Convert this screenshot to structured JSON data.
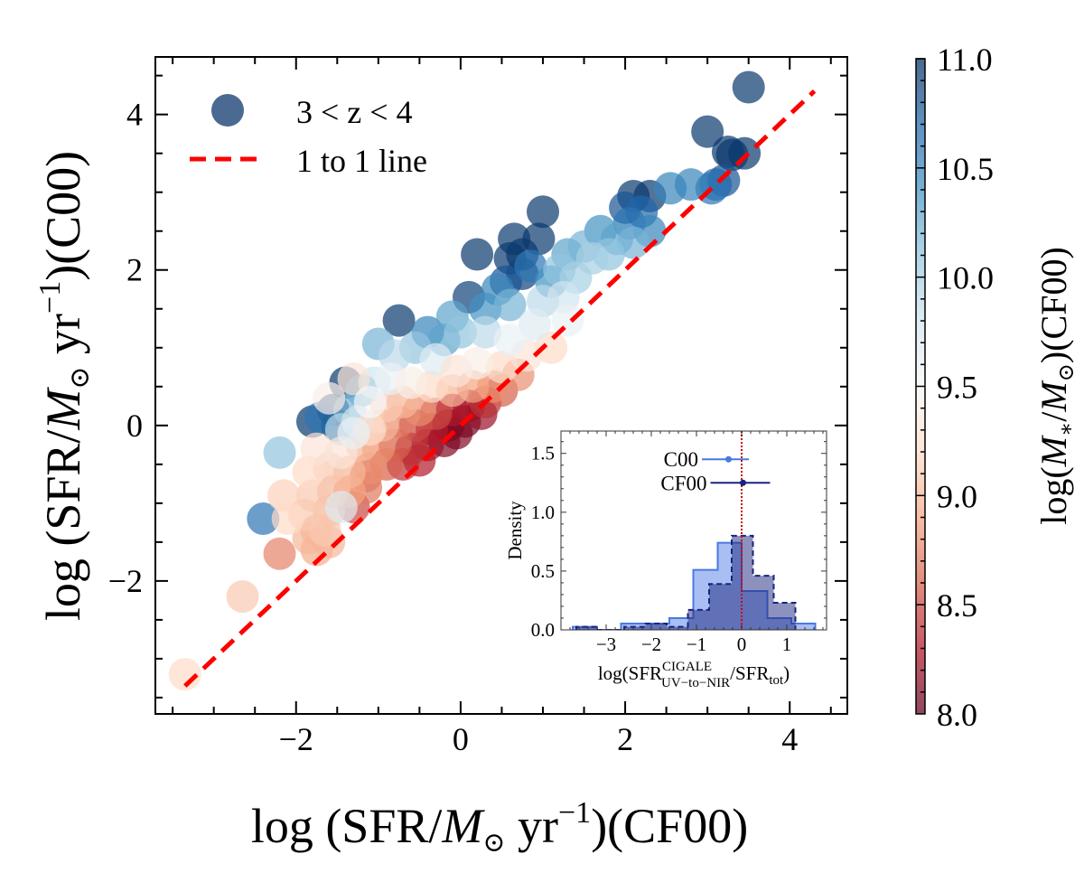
{
  "chart_data": [
    {
      "id": "main",
      "type": "scatter",
      "title": "",
      "xlabel": "log (SFR/M⊙ yr⁻¹)(CF00)",
      "ylabel": "log (SFR/M⊙ yr⁻¹)(C00)",
      "xlim": [
        -3.71,
        4.7
      ],
      "ylim": [
        -3.71,
        4.74
      ],
      "xticks": [
        -2,
        0,
        2,
        4
      ],
      "yticks": [
        -2,
        0,
        2,
        4
      ],
      "xtick_labels": [
        "−2",
        "0",
        "2",
        "4"
      ],
      "ytick_labels": [
        "−2",
        "0",
        "2",
        "4"
      ],
      "grid": false,
      "legend": {
        "placement": "top-left",
        "entries": [
          {
            "label": "3 < z < 4",
            "marker": "circle",
            "color": "#4a6a92"
          },
          {
            "label": "1 to 1 line",
            "marker": "dashed-line",
            "color": "#ff0000"
          }
        ]
      },
      "one_to_one_line": {
        "x": [
          -3.35,
          4.3
        ],
        "y": [
          -3.35,
          4.3
        ],
        "color": "#ff0000",
        "style": "dashed"
      },
      "colorbar": {
        "label": "log(M∗/M⊙)(CF00)",
        "range": [
          8.0,
          11.0
        ],
        "ticks": [
          8.0,
          8.5,
          9.0,
          9.5,
          10.0,
          10.5,
          11.0
        ],
        "tick_labels": [
          "8.0",
          "8.5",
          "9.0",
          "9.5",
          "10.0",
          "10.5",
          "11.0"
        ],
        "colormap": "RdBu",
        "alpha": 0.7
      },
      "series": [
        {
          "name": "3 < z < 4",
          "points": [
            [
              3.5,
              4.35,
              10.95
            ],
            [
              3.0,
              3.78,
              10.95
            ],
            [
              3.25,
              3.52,
              10.95
            ],
            [
              3.45,
              3.5,
              10.95
            ],
            [
              3.3,
              3.48,
              11.0
            ],
            [
              3.1,
              3.1,
              10.7
            ],
            [
              3.2,
              3.15,
              10.8
            ],
            [
              3.05,
              3.05,
              10.6
            ],
            [
              2.8,
              3.1,
              10.5
            ],
            [
              2.55,
              3.05,
              10.5
            ],
            [
              2.3,
              2.95,
              10.95
            ],
            [
              2.1,
              2.95,
              10.95
            ],
            [
              2.0,
              2.8,
              10.8
            ],
            [
              2.2,
              2.75,
              10.7
            ],
            [
              2.05,
              2.6,
              10.6
            ],
            [
              2.3,
              2.5,
              10.5
            ],
            [
              1.9,
              2.4,
              10.3
            ],
            [
              2.1,
              2.35,
              10.2
            ],
            [
              1.7,
              2.5,
              10.4
            ],
            [
              1.8,
              2.2,
              10.1
            ],
            [
              1.6,
              2.15,
              10.0
            ],
            [
              1.5,
              2.3,
              10.2
            ],
            [
              1.3,
              2.2,
              10.3
            ],
            [
              1.2,
              2.0,
              10.1
            ],
            [
              1.4,
              1.9,
              10.0
            ],
            [
              1.0,
              2.75,
              10.95
            ],
            [
              0.65,
              2.4,
              10.95
            ],
            [
              0.95,
              2.4,
              10.95
            ],
            [
              0.75,
              2.2,
              10.95
            ],
            [
              0.6,
              2.15,
              10.95
            ],
            [
              0.2,
              2.2,
              10.95
            ],
            [
              0.55,
              1.85,
              10.8
            ],
            [
              0.75,
              1.95,
              10.9
            ],
            [
              0.1,
              1.65,
              10.9
            ],
            [
              0.85,
              2.05,
              10.6
            ],
            [
              1.1,
              1.85,
              10.4
            ],
            [
              0.45,
              1.75,
              10.5
            ],
            [
              0.3,
              1.5,
              10.4
            ],
            [
              -0.1,
              1.4,
              10.3
            ],
            [
              1.0,
              1.6,
              9.9
            ],
            [
              1.25,
              1.65,
              9.8
            ],
            [
              0.6,
              1.55,
              10.2
            ],
            [
              0.9,
              1.3,
              9.7
            ],
            [
              1.3,
              1.35,
              9.6
            ],
            [
              -0.4,
              1.2,
              10.5
            ],
            [
              -0.2,
              1.1,
              10.3
            ],
            [
              0.0,
              1.2,
              10.1
            ],
            [
              0.3,
              1.2,
              9.9
            ],
            [
              0.6,
              1.1,
              9.6
            ],
            [
              -0.75,
              1.35,
              10.95
            ],
            [
              -0.55,
              1.0,
              10.1
            ],
            [
              -0.8,
              0.9,
              9.9
            ],
            [
              -1.0,
              1.05,
              10.2
            ],
            [
              -0.3,
              0.85,
              9.7
            ],
            [
              0.8,
              0.9,
              9.3
            ],
            [
              1.1,
              1.0,
              9.2
            ],
            [
              0.5,
              0.75,
              9.2
            ],
            [
              0.2,
              0.8,
              9.4
            ],
            [
              -0.05,
              0.7,
              9.3
            ],
            [
              -1.3,
              0.6,
              9.3
            ],
            [
              -1.4,
              0.55,
              10.95
            ],
            [
              -1.2,
              0.45,
              10.3
            ],
            [
              -1.05,
              0.55,
              9.8
            ],
            [
              -0.85,
              0.6,
              9.6
            ],
            [
              -0.6,
              0.55,
              9.4
            ],
            [
              -0.35,
              0.5,
              9.2
            ],
            [
              -0.1,
              0.45,
              9.0
            ],
            [
              0.15,
              0.5,
              8.9
            ],
            [
              0.4,
              0.5,
              8.8
            ],
            [
              -1.6,
              0.35,
              9.4
            ],
            [
              -1.55,
              0.2,
              10.95
            ],
            [
              -1.7,
              0.1,
              10.6
            ],
            [
              -1.35,
              0.2,
              10.2
            ],
            [
              -1.25,
              0.05,
              9.8
            ],
            [
              -1.1,
              0.3,
              9.5
            ],
            [
              -0.9,
              0.25,
              9.1
            ],
            [
              -0.7,
              0.3,
              9.0
            ],
            [
              -0.5,
              0.2,
              8.8
            ],
            [
              -0.3,
              0.15,
              8.5
            ],
            [
              -0.1,
              0.2,
              8.3
            ],
            [
              0.1,
              0.25,
              8.2
            ],
            [
              0.3,
              0.3,
              8.4
            ],
            [
              0.5,
              0.45,
              8.6
            ],
            [
              0.7,
              0.65,
              8.8
            ],
            [
              -1.8,
              0.05,
              10.95
            ],
            [
              -1.5,
              0.0,
              10.95
            ],
            [
              -1.45,
              -0.05,
              9.9
            ],
            [
              -1.3,
              -0.1,
              9.6
            ],
            [
              -1.1,
              -0.05,
              9.2
            ],
            [
              -0.95,
              0.0,
              9.0
            ],
            [
              -0.75,
              0.05,
              8.7
            ],
            [
              -0.55,
              0.0,
              8.5
            ],
            [
              -0.35,
              -0.05,
              8.3
            ],
            [
              -0.15,
              0.0,
              8.05
            ],
            [
              0.05,
              0.05,
              8.0
            ],
            [
              0.25,
              0.15,
              8.2
            ],
            [
              -0.05,
              -0.1,
              8.1
            ],
            [
              -2.2,
              -0.35,
              10.1
            ],
            [
              -1.75,
              -0.3,
              9.3
            ],
            [
              -1.45,
              -0.35,
              9.3
            ],
            [
              -1.2,
              -0.25,
              9.0
            ],
            [
              -1.0,
              -0.3,
              8.8
            ],
            [
              -0.8,
              -0.25,
              8.6
            ],
            [
              -0.6,
              -0.3,
              8.4
            ],
            [
              -0.4,
              -0.25,
              8.2
            ],
            [
              -0.2,
              -0.2,
              8.1
            ],
            [
              -1.85,
              -0.6,
              9.2
            ],
            [
              -1.6,
              -0.55,
              9.1
            ],
            [
              -1.35,
              -0.6,
              9.0
            ],
            [
              -1.1,
              -0.55,
              8.8
            ],
            [
              -0.9,
              -0.5,
              8.6
            ],
            [
              -0.7,
              -0.5,
              8.4
            ],
            [
              -0.5,
              -0.45,
              8.3
            ],
            [
              -1.15,
              -0.65,
              8.7
            ],
            [
              -2.15,
              -0.9,
              9.15
            ],
            [
              -1.8,
              -0.9,
              9.1
            ],
            [
              -1.55,
              -0.85,
              9.0
            ],
            [
              -1.35,
              -0.85,
              8.9
            ],
            [
              -1.15,
              -0.8,
              8.7
            ],
            [
              -1.6,
              -1.1,
              9.0
            ],
            [
              -1.45,
              -1.05,
              9.7
            ],
            [
              -1.3,
              -1.05,
              8.5
            ],
            [
              -1.75,
              -1.35,
              9.0
            ],
            [
              -2.4,
              -1.2,
              10.6
            ],
            [
              -1.9,
              -1.15,
              9.1
            ],
            [
              -2.1,
              -1.2,
              9.2
            ],
            [
              -1.85,
              -1.45,
              9.0
            ],
            [
              -1.65,
              -1.35,
              9.1
            ],
            [
              -2.2,
              -1.65,
              8.75
            ],
            [
              -1.75,
              -1.6,
              8.95
            ],
            [
              -1.6,
              -1.5,
              9.0
            ],
            [
              -2.65,
              -2.2,
              9.1
            ],
            [
              -3.35,
              -3.2,
              9.2
            ]
          ]
        }
      ]
    },
    {
      "id": "inset",
      "type": "bar",
      "subtype": "histogram",
      "xlabel": "log(SFR^CIGALE_UV−to−NIR / SFR_tot)",
      "xlabel_main": "log(SFR",
      "xlabel_sup": "CIGALE",
      "xlabel_sub": "UV−to−NIR",
      "xlabel_mid": "/SFR",
      "xlabel_sub2": "tot",
      "xlabel_end": ")",
      "ylabel": "Density",
      "xlim": [
        -4.0,
        1.88
      ],
      "ylim": [
        0.0,
        1.69
      ],
      "xticks": [
        -3,
        -2,
        -1,
        0,
        1
      ],
      "xtick_labels": [
        "−3",
        "−2",
        "−1",
        "0",
        "1"
      ],
      "yticks": [
        0.0,
        0.5,
        1.0,
        1.5
      ],
      "ytick_labels": [
        "0.0",
        "0.5",
        "1.0",
        "1.5"
      ],
      "vline": {
        "x": 0.0,
        "color": "#cc0000",
        "style": "dotted"
      },
      "series": [
        {
          "name": "C00",
          "color": "#4a7ae0",
          "style": "solid",
          "bin_edges": [
            -3.74,
            -3.2,
            -2.67,
            -2.13,
            -1.6,
            -1.07,
            -0.53,
            0.0,
            0.57,
            1.1,
            1.63
          ],
          "values": [
            0.026,
            0.0,
            0.054,
            0.054,
            0.1,
            0.51,
            0.74,
            0.33,
            0.1,
            0.054
          ]
        },
        {
          "name": "CF00",
          "color": "#1a237e",
          "style": "dashed",
          "bin_edges": [
            -3.66,
            -3.19,
            -2.72,
            -2.6,
            -2.13,
            -1.66,
            -1.19,
            -0.72,
            -0.22,
            0.25,
            0.71,
            1.19
          ],
          "values": [
            0.026,
            0.0,
            0.0,
            0.026,
            0.054,
            0.026,
            0.17,
            0.39,
            0.8,
            0.46,
            0.23
          ]
        }
      ],
      "errorbars": [
        {
          "label": "C00",
          "color": "#4a7ae0",
          "x": -0.29,
          "xerr_low": -0.88,
          "xerr_high": 0.16,
          "y": 1.45
        },
        {
          "label": "CF00",
          "color": "#1a237e",
          "x": 0.03,
          "xerr_low": -0.69,
          "xerr_high": 0.63,
          "y": 1.25
        }
      ]
    }
  ]
}
